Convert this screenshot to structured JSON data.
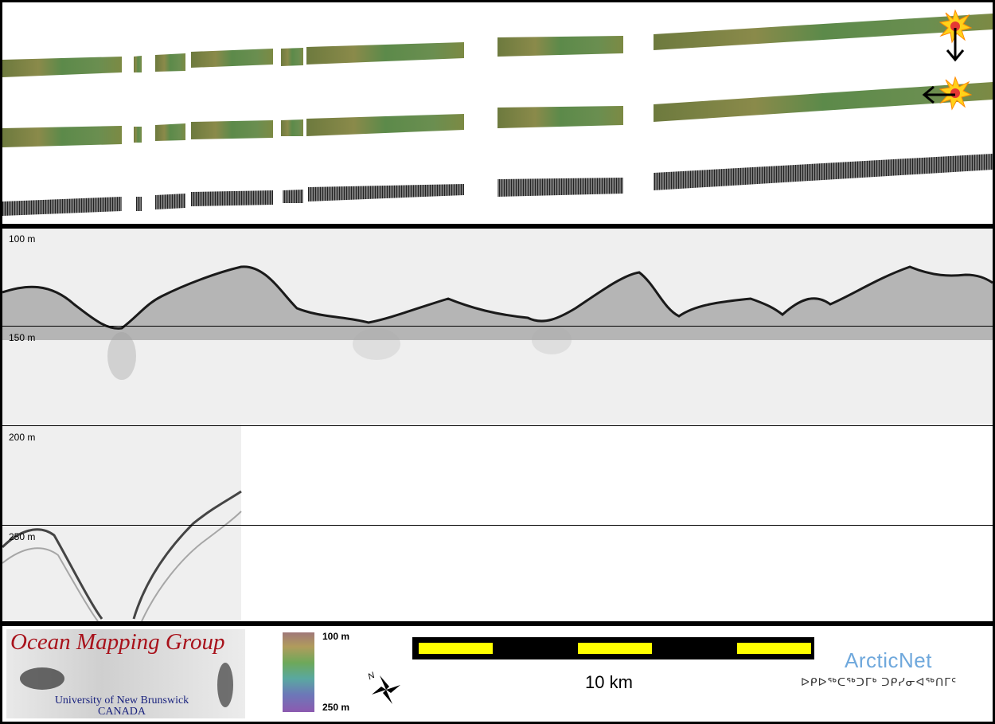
{
  "profile": {
    "depth_labels": [
      "100 m",
      "150 m",
      "200 m",
      "250 m"
    ]
  },
  "footer": {
    "omg_logo": {
      "title": "Ocean Mapping Group",
      "university": "University of New Brunswick",
      "country": "CANADA"
    },
    "colorbar": {
      "max_label": "100 m",
      "min_label": "250 m"
    },
    "north_arrow_label": "N",
    "scale_bar_label": "10 km",
    "arcticnet": {
      "name": "ArcticNet",
      "inuktitut": "ᐅᑭᐅᖅᑕᖅᑐᒥᒃ ᑐᑭᓯᓂᐊᖅᑎᒥᑦ"
    }
  },
  "colors": {
    "frame": "#000000",
    "panel_bg": "#ffffff",
    "scale_bar_fill": "#ffff00",
    "omg_title": "#a8121b",
    "omg_text": "#1a237e",
    "arcticnet_text": "#6fa8dc"
  },
  "icons": {
    "sun_markers": [
      "sun-burst-icon",
      "sun-burst-icon"
    ],
    "arrows": [
      "arrow-down-icon",
      "arrow-left-icon"
    ]
  }
}
